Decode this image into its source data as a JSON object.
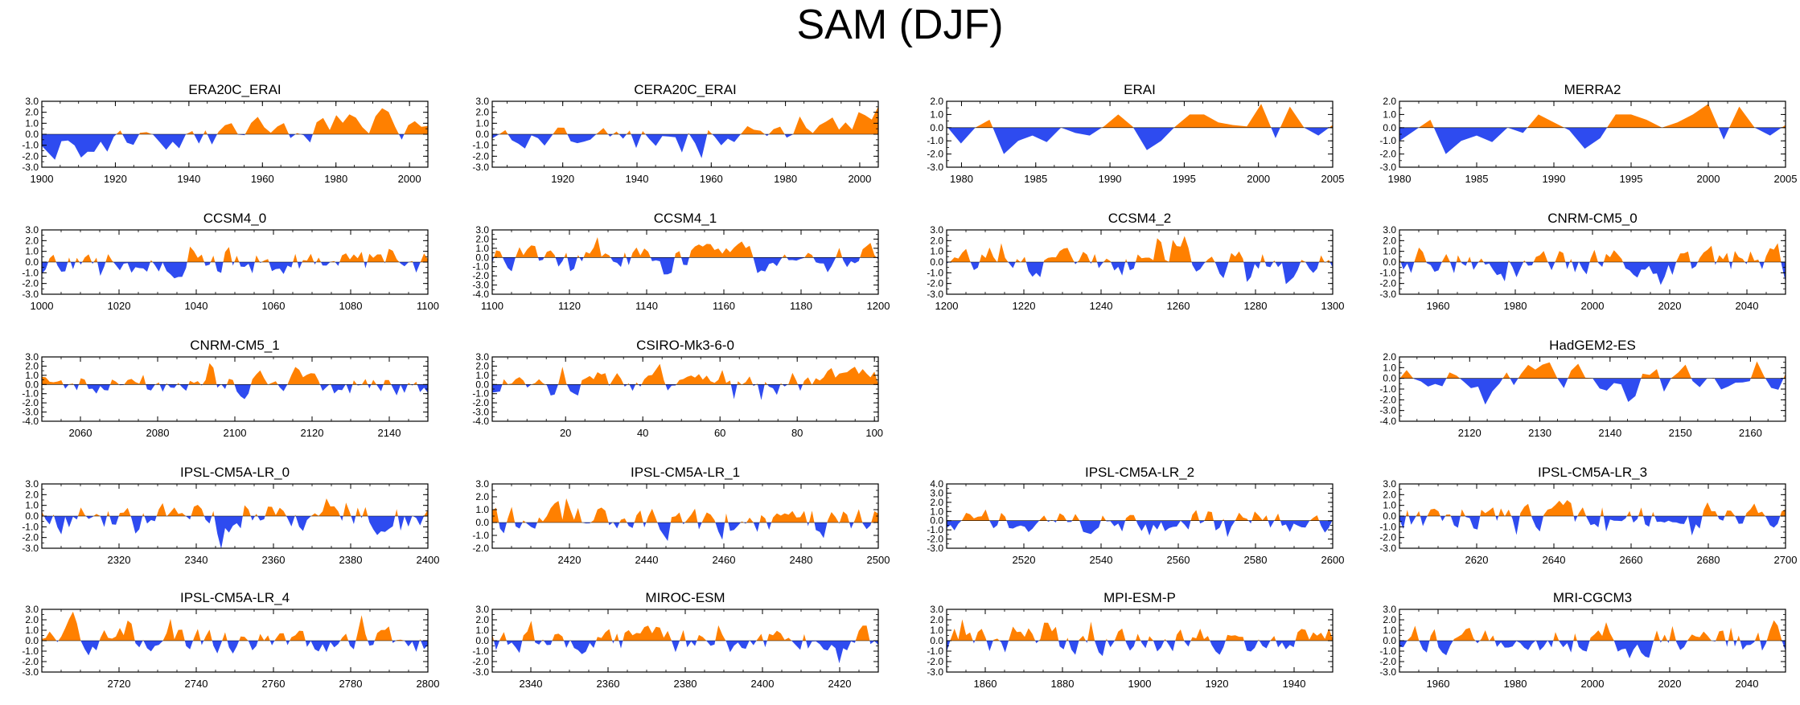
{
  "title": "SAM (DJF)",
  "colors": {
    "positive": "#FF8000",
    "negative": "#2E4BF0",
    "axis": "#000000"
  },
  "chart_data": [
    {
      "type": "area",
      "title": "ERA20C_ERAI",
      "xlim": [
        1900,
        2005
      ],
      "xticks": [
        1900,
        1920,
        1940,
        1960,
        1980,
        2000
      ],
      "ylim": [
        -3,
        3
      ],
      "yticks": [
        3.0,
        2.0,
        1.0,
        0.0,
        -1.0,
        -2.0,
        -3.0
      ],
      "points": 60,
      "seed": 1,
      "trend": [
        -1.2,
        1.4
      ]
    },
    {
      "type": "area",
      "title": "CERA20C_ERAI",
      "xlim": [
        1901,
        2005
      ],
      "xticks": [
        1920,
        1940,
        1960,
        1980,
        2000
      ],
      "ylim": [
        -3,
        3
      ],
      "yticks": [
        3.0,
        2.0,
        1.0,
        0.0,
        -1.0,
        -2.0,
        -3.0
      ],
      "points": 60,
      "seed": 2,
      "trend": [
        -1.0,
        1.4
      ]
    },
    {
      "type": "area",
      "title": "ERAI",
      "xlim": [
        1979,
        2005
      ],
      "xticks": [
        1980,
        1985,
        1990,
        1995,
        2000,
        2005
      ],
      "ylim": [
        -3,
        2
      ],
      "yticks": [
        2.0,
        1.0,
        0.0,
        -1.0,
        -2.0,
        -3.0
      ],
      "values": [
        0.1,
        -1.2,
        0.0,
        0.6,
        -2.0,
        -1.0,
        -0.6,
        -1.1,
        0.0,
        -0.4,
        -0.6,
        0.1,
        1.0,
        0.1,
        -1.7,
        -1.0,
        0.1,
        1.0,
        1.0,
        0.4,
        0.2,
        0.1,
        1.8,
        -0.8,
        1.6,
        0.0,
        -0.6,
        0.2
      ]
    },
    {
      "type": "area",
      "title": "MERRA2",
      "xlim": [
        1980,
        2005
      ],
      "xticks": [
        1980,
        1985,
        1990,
        1995,
        2000,
        2005
      ],
      "ylim": [
        -3,
        2
      ],
      "yticks": [
        2.0,
        1.0,
        0.0,
        -1.0,
        -2.0,
        -3.0
      ],
      "values": [
        -1.0,
        -0.2,
        0.6,
        -2.0,
        -1.0,
        -0.6,
        -1.1,
        0.0,
        -0.4,
        1.0,
        0.4,
        -0.2,
        -1.6,
        -0.8,
        1.0,
        1.0,
        0.6,
        0.0,
        0.4,
        1.0,
        1.8,
        -0.9,
        1.6,
        0.0,
        -0.6,
        0.2
      ]
    },
    {
      "type": "area",
      "title": "CCSM4_0",
      "xlim": [
        1000,
        1100
      ],
      "xticks": [
        1000,
        1020,
        1040,
        1060,
        1080,
        1100
      ],
      "ylim": [
        -3,
        3
      ],
      "yticks": [
        3.0,
        2.0,
        1.0,
        0.0,
        -1.0,
        -2.0,
        -3.0
      ],
      "points": 100,
      "seed": 3,
      "trend": [
        0,
        0
      ]
    },
    {
      "type": "area",
      "title": "CCSM4_1",
      "xlim": [
        1100,
        1200
      ],
      "xticks": [
        1100,
        1120,
        1140,
        1160,
        1180,
        1200
      ],
      "ylim": [
        -4,
        3
      ],
      "yticks": [
        3.0,
        2.0,
        1.0,
        0.0,
        -1.0,
        -2.0,
        -3.0,
        -4.0
      ],
      "points": 100,
      "seed": 4,
      "trend": [
        0,
        0
      ]
    },
    {
      "type": "area",
      "title": "CCSM4_2",
      "xlim": [
        1200,
        1300
      ],
      "xticks": [
        1200,
        1220,
        1240,
        1260,
        1280,
        1300
      ],
      "ylim": [
        -3,
        3
      ],
      "yticks": [
        3.0,
        2.0,
        1.0,
        0.0,
        -1.0,
        -2.0,
        -3.0
      ],
      "points": 100,
      "seed": 5,
      "trend": [
        0,
        0
      ]
    },
    {
      "type": "area",
      "title": "CNRM-CM5_0",
      "xlim": [
        1950,
        2050
      ],
      "xticks": [
        1960,
        1980,
        2000,
        2020,
        2040
      ],
      "ylim": [
        -3,
        3
      ],
      "yticks": [
        3.0,
        2.0,
        1.0,
        0.0,
        -1.0,
        -2.0,
        -3.0
      ],
      "points": 100,
      "seed": 6,
      "trend": [
        0,
        0
      ]
    },
    {
      "type": "area",
      "title": "CNRM-CM5_1",
      "xlim": [
        2050,
        2150
      ],
      "xticks": [
        2060,
        2080,
        2100,
        2120,
        2140
      ],
      "ylim": [
        -4,
        3
      ],
      "yticks": [
        3.0,
        2.0,
        1.0,
        0.0,
        -1.0,
        -2.0,
        -3.0,
        -4.0
      ],
      "points": 100,
      "seed": 7,
      "trend": [
        0,
        0
      ]
    },
    {
      "type": "area",
      "title": "CSIRO-Mk3-6-0",
      "xlim": [
        1,
        101
      ],
      "xticks": [
        20,
        40,
        60,
        80,
        100
      ],
      "ylim": [
        -4,
        3
      ],
      "yticks": [
        3.0,
        2.0,
        1.0,
        0.0,
        -1.0,
        -2.0,
        -3.0,
        -4.0
      ],
      "points": 100,
      "seed": 8,
      "trend": [
        0,
        0.8
      ]
    },
    null,
    {
      "type": "area",
      "title": "HadGEM2-ES",
      "xlim": [
        2110,
        2165
      ],
      "xticks": [
        2120,
        2130,
        2140,
        2150,
        2160
      ],
      "ylim": [
        -4,
        2
      ],
      "yticks": [
        2.0,
        1.0,
        0.0,
        -1.0,
        -2.0,
        -3.0,
        -4.0
      ],
      "points": 55,
      "seed": 9,
      "trend": [
        0,
        0
      ]
    },
    {
      "type": "area",
      "title": "IPSL-CM5A-LR_0",
      "xlim": [
        2300,
        2400
      ],
      "xticks": [
        2320,
        2340,
        2360,
        2380,
        2400
      ],
      "ylim": [
        -3,
        3
      ],
      "yticks": [
        3.0,
        2.0,
        1.0,
        0.0,
        -1.0,
        -2.0,
        -3.0
      ],
      "points": 100,
      "seed": 10,
      "trend": [
        0,
        0
      ]
    },
    {
      "type": "area",
      "title": "IPSL-CM5A-LR_1",
      "xlim": [
        2400,
        2500
      ],
      "xticks": [
        2420,
        2440,
        2460,
        2480,
        2500
      ],
      "ylim": [
        -2,
        3
      ],
      "yticks": [
        3.0,
        2.0,
        1.0,
        0.0,
        -1.0,
        -2.0
      ],
      "points": 100,
      "seed": 11,
      "trend": [
        0,
        0
      ]
    },
    {
      "type": "area",
      "title": "IPSL-CM5A-LR_2",
      "xlim": [
        2500,
        2600
      ],
      "xticks": [
        2520,
        2540,
        2560,
        2580,
        2600
      ],
      "ylim": [
        -3,
        4
      ],
      "yticks": [
        4.0,
        3.0,
        2.0,
        1.0,
        0.0,
        -1.0,
        -2.0,
        -3.0
      ],
      "points": 100,
      "seed": 12,
      "trend": [
        0,
        0
      ]
    },
    {
      "type": "area",
      "title": "IPSL-CM5A-LR_3",
      "xlim": [
        2600,
        2700
      ],
      "xticks": [
        2620,
        2640,
        2660,
        2680,
        2700
      ],
      "ylim": [
        -3,
        3
      ],
      "yticks": [
        3.0,
        2.0,
        1.0,
        0.0,
        -1.0,
        -2.0,
        -3.0
      ],
      "points": 100,
      "seed": 13,
      "trend": [
        0,
        0
      ]
    },
    {
      "type": "area",
      "title": "IPSL-CM5A-LR_4",
      "xlim": [
        2700,
        2800
      ],
      "xticks": [
        2720,
        2740,
        2760,
        2780,
        2800
      ],
      "ylim": [
        -3,
        3
      ],
      "yticks": [
        3.0,
        2.0,
        1.0,
        0.0,
        -1.0,
        -2.0,
        -3.0
      ],
      "points": 100,
      "seed": 14,
      "trend": [
        0,
        0
      ]
    },
    {
      "type": "area",
      "title": "MIROC-ESM",
      "xlim": [
        2330,
        2430
      ],
      "xticks": [
        2340,
        2360,
        2380,
        2400,
        2420
      ],
      "ylim": [
        -3,
        3
      ],
      "yticks": [
        3.0,
        2.0,
        1.0,
        0.0,
        -1.0,
        -2.0,
        -3.0
      ],
      "points": 100,
      "seed": 15,
      "trend": [
        0,
        0
      ]
    },
    {
      "type": "area",
      "title": "MPI-ESM-P",
      "xlim": [
        1850,
        1950
      ],
      "xticks": [
        1860,
        1880,
        1900,
        1920,
        1940
      ],
      "ylim": [
        -3,
        3
      ],
      "yticks": [
        3.0,
        2.0,
        1.0,
        0.0,
        -1.0,
        -2.0,
        -3.0
      ],
      "points": 100,
      "seed": 16,
      "trend": [
        0,
        0
      ]
    },
    {
      "type": "area",
      "title": "MRI-CGCM3",
      "xlim": [
        1950,
        2050
      ],
      "xticks": [
        1960,
        1980,
        2000,
        2020,
        2040
      ],
      "ylim": [
        -3,
        3
      ],
      "yticks": [
        3.0,
        2.0,
        1.0,
        0.0,
        -1.0,
        -2.0,
        -3.0
      ],
      "points": 100,
      "seed": 17,
      "trend": [
        0,
        0
      ]
    }
  ]
}
